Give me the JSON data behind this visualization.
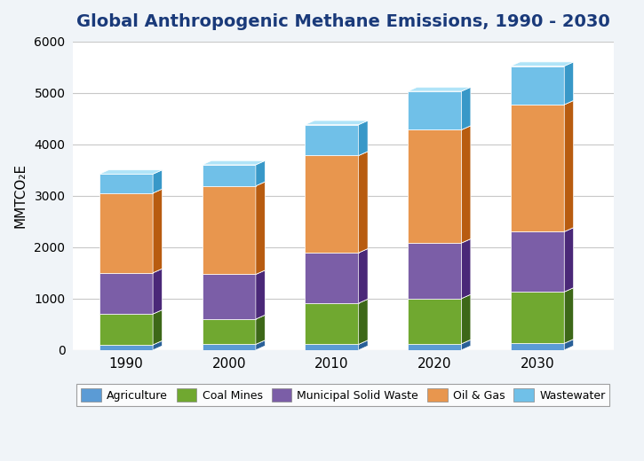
{
  "title": "Global Anthropogenic Methane Emissions, 1990 - 2030",
  "ylabel": "MMTCO₂E",
  "years": [
    1990,
    2000,
    2010,
    2020,
    2030
  ],
  "categories": [
    "Agriculture",
    "Coal Mines",
    "Municipal Solid Waste",
    "Oil & Gas",
    "Wastewater"
  ],
  "values": {
    "Agriculture": [
      100,
      110,
      110,
      120,
      130
    ],
    "Coal Mines": [
      600,
      490,
      800,
      880,
      1000
    ],
    "Municipal Solid Waste": [
      800,
      870,
      980,
      1080,
      1170
    ],
    "Oil & Gas": [
      1550,
      1720,
      1890,
      2200,
      2470
    ],
    "Wastewater": [
      370,
      410,
      600,
      750,
      750
    ]
  },
  "color_front": {
    "Agriculture": "#5b9bd5",
    "Coal Mines": "#70a830",
    "Municipal Solid Waste": "#7b5ea7",
    "Oil & Gas": "#e8964e",
    "Wastewater": "#70c0e8"
  },
  "color_side": {
    "Agriculture": "#2a6098",
    "Coal Mines": "#3d6818",
    "Municipal Solid Waste": "#4a2878",
    "Oil & Gas": "#b85c10",
    "Wastewater": "#3898c8"
  },
  "color_top": {
    "Agriculture": "#a0cce8",
    "Coal Mines": "#b8d878",
    "Municipal Solid Waste": "#b8a8d8",
    "Oil & Gas": "#f8c888",
    "Wastewater": "#b0e4f8"
  },
  "ylim": [
    0,
    6000
  ],
  "yticks": [
    0,
    1000,
    2000,
    3000,
    4000,
    5000,
    6000
  ],
  "background_color": "#f0f4f8",
  "title_color": "#1a3a7a",
  "title_fontsize": 14,
  "legend_fontsize": 9
}
